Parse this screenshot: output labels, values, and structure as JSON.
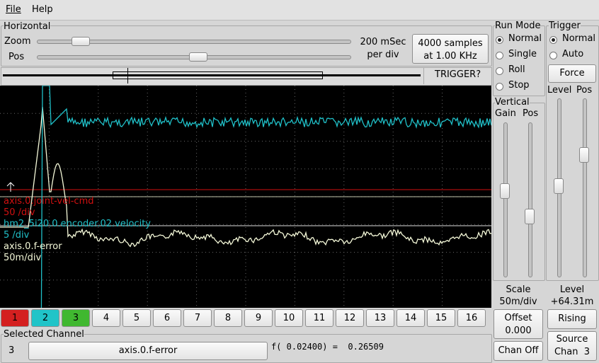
{
  "menu": [
    "File",
    "Help"
  ],
  "horizontal": {
    "title": "Horizontal",
    "zoom_label": "Zoom",
    "pos_label": "Pos",
    "rate": [
      "200 mSec",
      "per div"
    ],
    "samples": [
      "4000 samples",
      "at 1.00 KHz"
    ]
  },
  "trigger_status": "TRIGGER?",
  "traces": [
    {
      "name": "axis.0.joint-vel-cmd",
      "scale": "50 /div",
      "color": "#d01010"
    },
    {
      "name": "hm2_5i20.0.encoder.02.velocity",
      "scale": "5 /div",
      "color": "#20c0c8"
    },
    {
      "name": "axis.0.f-error",
      "scale": "50m/div",
      "color": "#f4f8d8"
    }
  ],
  "channels": [
    {
      "label": "1",
      "color": "#d42020"
    },
    {
      "label": "2",
      "color": "#20c4c8"
    },
    {
      "label": "3",
      "color": "#40b830"
    },
    {
      "label": "4",
      "color": null
    },
    {
      "label": "5",
      "color": null
    },
    {
      "label": "6",
      "color": null
    },
    {
      "label": "7",
      "color": null
    },
    {
      "label": "8",
      "color": null
    },
    {
      "label": "9",
      "color": null
    },
    {
      "label": "10",
      "color": null
    },
    {
      "label": "11",
      "color": null
    },
    {
      "label": "12",
      "color": null
    },
    {
      "label": "13",
      "color": null
    },
    {
      "label": "14",
      "color": null
    },
    {
      "label": "15",
      "color": null
    },
    {
      "label": "16",
      "color": null
    }
  ],
  "selected_channel": {
    "title": "Selected Channel",
    "number": "3",
    "name": "axis.0.f-error",
    "readout": "f( 0.02400) =  0.26509"
  },
  "run_mode": {
    "title": "Run Mode",
    "options": [
      "Normal",
      "Single",
      "Roll",
      "Stop"
    ],
    "selected": 0
  },
  "vertical": {
    "title": "Vertical",
    "gain_label": "Gain",
    "pos_label": "Pos",
    "scale_title": "Scale",
    "scale_value": "50m/div",
    "offset": [
      "Offset",
      "0.000"
    ],
    "chan_off": "Chan Off"
  },
  "trigger": {
    "title": "Trigger",
    "options": [
      "Normal",
      "Auto"
    ],
    "selected": 0,
    "force": "Force",
    "level_label": "Level",
    "pos_label": "Pos",
    "level_title": "Level",
    "level_value": "+64.31m",
    "edge": "Rising",
    "source": [
      "Source",
      "Chan  3"
    ]
  }
}
